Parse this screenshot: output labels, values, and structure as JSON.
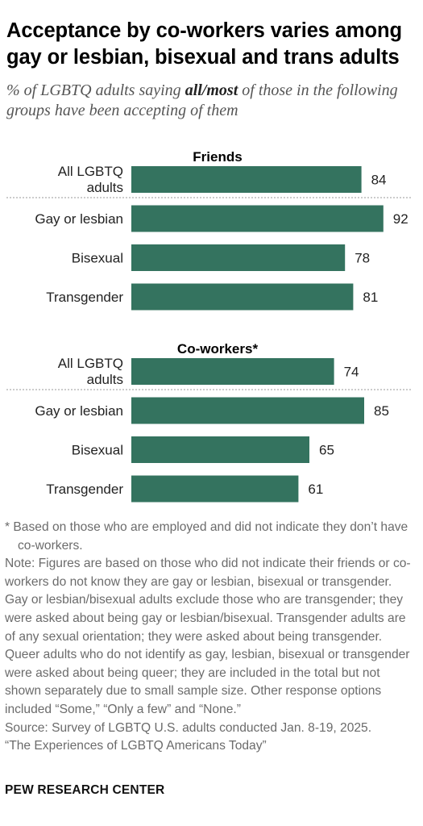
{
  "title": "Acceptance by co-workers varies among gay or lesbian, bisexual and trans adults",
  "subtitle_pre": "% of LGBTQ adults saying ",
  "subtitle_bold": "all/most",
  "subtitle_post": " of those in the following groups have been accepting of them",
  "colors": {
    "bar": "#34735f",
    "divider": "#999999"
  },
  "chart_data": {
    "type": "bar",
    "orientation": "horizontal",
    "categories": [
      "All LGBTQ adults",
      "Gay or lesbian",
      "Bisexual",
      "Transgender"
    ],
    "panels": [
      {
        "title": "Friends",
        "values": [
          84,
          92,
          78,
          81
        ]
      },
      {
        "title": "Co-workers*",
        "values": [
          74,
          85,
          65,
          61
        ]
      }
    ],
    "xlim": [
      0,
      100
    ]
  },
  "notes": {
    "footnote": "* Based on those who are employed and did not indicate they don’t have co-workers.",
    "note": "Note: Figures are based on those who did not indicate their friends or co-workers do not know they are gay or lesbian, bisexual or transgender. Gay or lesbian/bisexual adults exclude those who are transgender; they were asked about being gay or lesbian/bisexual. Transgender adults are of any sexual orientation; they were asked about being transgender. Queer adults who do not identify as gay, lesbian, bisexual or transgender were asked about being queer; they are included in the total but not shown separately due to small sample size. Other response options included “Some,” “Only a few” and “None.”",
    "source": "Source: Survey of LGBTQ U.S. adults conducted Jan. 8-19, 2025.",
    "report": "“The Experiences of LGBTQ Americans Today”"
  },
  "branding": "PEW RESEARCH CENTER"
}
